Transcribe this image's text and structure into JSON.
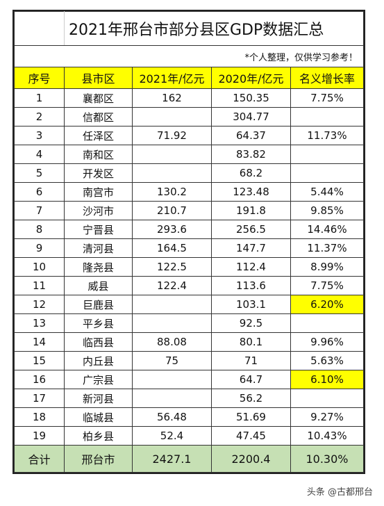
{
  "title": "2021年邢台市部分县区GDP数据汇总",
  "note": "*个人整理，仅供学习参考！",
  "headers": [
    "序号",
    "县市区",
    "2021年/亿元",
    "2020年/亿元",
    "名义增长率"
  ],
  "rows": [
    {
      "no": "1",
      "name": "襄都区",
      "y2021": "162",
      "y2020": "150.35",
      "growth": "7.75%"
    },
    {
      "no": "2",
      "name": "信都区",
      "y2021": "",
      "y2020": "304.77",
      "growth": ""
    },
    {
      "no": "3",
      "name": "任泽区",
      "y2021": "71.92",
      "y2020": "64.37",
      "growth": "11.73%"
    },
    {
      "no": "4",
      "name": "南和区",
      "y2021": "",
      "y2020": "83.82",
      "growth": ""
    },
    {
      "no": "5",
      "name": "开发区",
      "y2021": "",
      "y2020": "68.2",
      "growth": ""
    },
    {
      "no": "6",
      "name": "南宫市",
      "y2021": "130.2",
      "y2020": "123.48",
      "growth": "5.44%"
    },
    {
      "no": "7",
      "name": "沙河市",
      "y2021": "210.7",
      "y2020": "191.8",
      "growth": "9.85%"
    },
    {
      "no": "8",
      "name": "宁晋县",
      "y2021": "293.6",
      "y2020": "256.5",
      "growth": "14.46%"
    },
    {
      "no": "9",
      "name": "清河县",
      "y2021": "164.5",
      "y2020": "147.7",
      "growth": "11.37%"
    },
    {
      "no": "10",
      "name": "隆尧县",
      "y2021": "122.5",
      "y2020": "112.4",
      "growth": "8.99%"
    },
    {
      "no": "11",
      "name": "威县",
      "y2021": "122.4",
      "y2020": "113.6",
      "growth": "7.75%"
    },
    {
      "no": "12",
      "name": "巨鹿县",
      "y2021": "",
      "y2020": "103.1",
      "growth": "6.20%"
    },
    {
      "no": "13",
      "name": "平乡县",
      "y2021": "",
      "y2020": "92.5",
      "growth": ""
    },
    {
      "no": "14",
      "name": "临西县",
      "y2021": "88.08",
      "y2020": "80.1",
      "growth": "9.96%"
    },
    {
      "no": "15",
      "name": "内丘县",
      "y2021": "75",
      "y2020": "71",
      "growth": "5.63%"
    },
    {
      "no": "16",
      "name": "广宗县",
      "y2021": "",
      "y2020": "64.7",
      "growth": "6.10%"
    },
    {
      "no": "17",
      "name": "新河县",
      "y2021": "",
      "y2020": "56.2",
      "growth": ""
    },
    {
      "no": "18",
      "name": "临城县",
      "y2021": "56.48",
      "y2020": "51.69",
      "growth": "9.27%"
    },
    {
      "no": "19",
      "name": "柏乡县",
      "y2021": "52.4",
      "y2020": "47.45",
      "growth": "10.43%"
    }
  ],
  "highlighted_growth_rows": [
    "12",
    "16"
  ],
  "total": {
    "label": "合计",
    "name": "邢台市",
    "y2021": "2427.1",
    "y2020": "2200.4",
    "growth": "10.30%"
  },
  "watermark": "头条 @古都邢台",
  "colors": {
    "header_bg": "#ffff00",
    "total_bg": "#c6e0b4",
    "highlight": "#ffff00"
  }
}
